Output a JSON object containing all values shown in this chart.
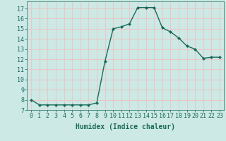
{
  "x": [
    0,
    1,
    2,
    3,
    4,
    5,
    6,
    7,
    8,
    9,
    10,
    11,
    12,
    13,
    14,
    15,
    16,
    17,
    18,
    19,
    20,
    21,
    22,
    23
  ],
  "y": [
    8.0,
    7.5,
    7.5,
    7.5,
    7.5,
    7.5,
    7.5,
    7.5,
    7.7,
    11.8,
    15.0,
    15.2,
    15.5,
    17.1,
    17.1,
    17.1,
    15.1,
    14.7,
    14.1,
    13.3,
    13.0,
    12.1,
    12.2,
    12.2
  ],
  "line_color": "#1a6b5a",
  "marker": "D",
  "marker_size": 2.0,
  "bg_color": "#cce9e5",
  "grid_color": "#e8c8c8",
  "title": "",
  "xlabel": "Humidex (Indice chaleur)",
  "ylabel": "",
  "xlim": [
    -0.5,
    23.5
  ],
  "ylim": [
    7,
    17.7
  ],
  "yticks": [
    7,
    8,
    9,
    10,
    11,
    12,
    13,
    14,
    15,
    16,
    17
  ],
  "xticks": [
    0,
    1,
    2,
    3,
    4,
    5,
    6,
    7,
    8,
    9,
    10,
    11,
    12,
    13,
    14,
    15,
    16,
    17,
    18,
    19,
    20,
    21,
    22,
    23
  ],
  "xlabel_fontsize": 7,
  "tick_fontsize": 6.0,
  "line_width": 1.0
}
